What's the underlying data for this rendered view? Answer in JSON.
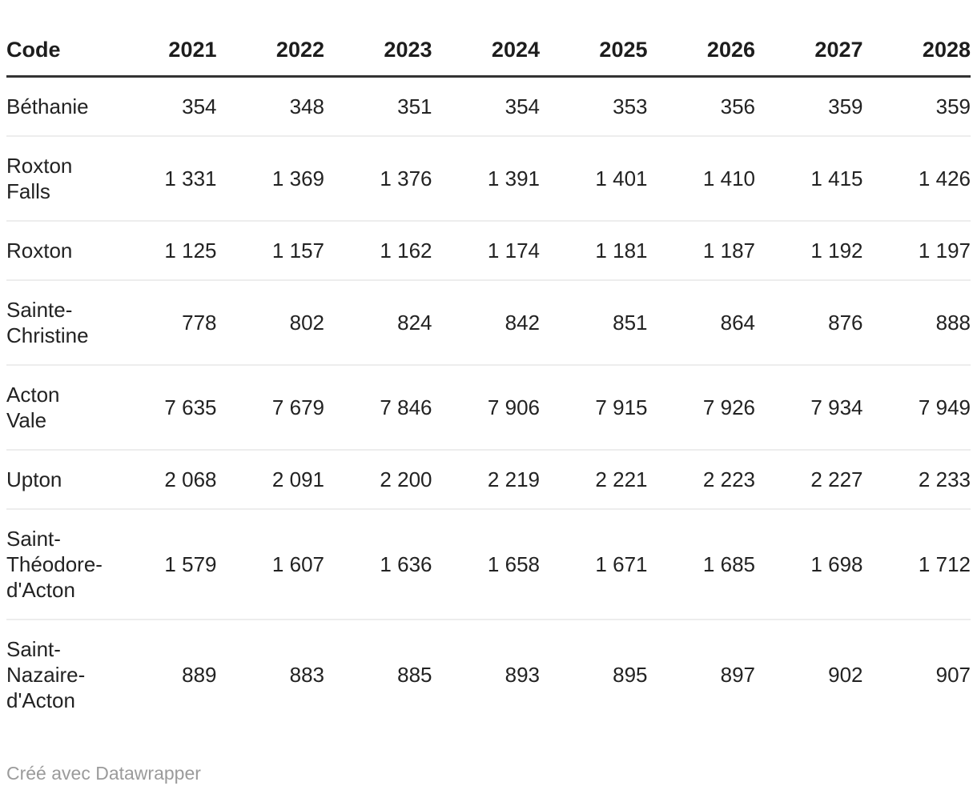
{
  "chart_data": {
    "type": "table",
    "title": "",
    "columns": [
      "Code",
      "2021",
      "2022",
      "2023",
      "2024",
      "2025",
      "2026",
      "2027",
      "2028"
    ],
    "rows": [
      {
        "label": "Béthanie",
        "values": [
          354,
          348,
          351,
          354,
          353,
          356,
          359,
          359
        ]
      },
      {
        "label": "Roxton Falls",
        "values": [
          1331,
          1369,
          1376,
          1391,
          1401,
          1410,
          1415,
          1426
        ]
      },
      {
        "label": "Roxton",
        "values": [
          1125,
          1157,
          1162,
          1174,
          1181,
          1187,
          1192,
          1197
        ]
      },
      {
        "label": "Sainte-Christine",
        "values": [
          778,
          802,
          824,
          842,
          851,
          864,
          876,
          888
        ]
      },
      {
        "label": "Acton Vale",
        "values": [
          7635,
          7679,
          7846,
          7906,
          7915,
          7926,
          7934,
          7949
        ]
      },
      {
        "label": "Upton",
        "values": [
          2068,
          2091,
          2200,
          2219,
          2221,
          2223,
          2227,
          2233
        ]
      },
      {
        "label": "Saint-Théodore-d'Acton",
        "values": [
          1579,
          1607,
          1636,
          1658,
          1671,
          1685,
          1698,
          1712
        ]
      },
      {
        "label": "Saint-Nazaire-d'Acton",
        "values": [
          889,
          883,
          885,
          893,
          895,
          897,
          902,
          907
        ]
      }
    ],
    "layout_hints": {
      "number_format": "space thousands separator",
      "first_column_align": "left",
      "year_columns_align": "right",
      "grid": "horizontal rules only",
      "right_edge_clipped": true
    }
  },
  "table": {
    "header": [
      "Code",
      "2021",
      "2022",
      "2023",
      "2024",
      "2025",
      "2026",
      "2027",
      "2028"
    ],
    "rows": [
      {
        "label_display": "Béthanie",
        "cells": [
          "354",
          "348",
          "351",
          "354",
          "353",
          "356",
          "359",
          "359"
        ]
      },
      {
        "label_display": "Roxton\nFalls",
        "cells": [
          "1 331",
          "1 369",
          "1 376",
          "1 391",
          "1 401",
          "1 410",
          "1 415",
          "1 426"
        ]
      },
      {
        "label_display": "Roxton",
        "cells": [
          "1 125",
          "1 157",
          "1 162",
          "1 174",
          "1 181",
          "1 187",
          "1 192",
          "1 197"
        ]
      },
      {
        "label_display": "Sainte-\nChristine",
        "cells": [
          "778",
          "802",
          "824",
          "842",
          "851",
          "864",
          "876",
          "888"
        ]
      },
      {
        "label_display": "Acton\nVale",
        "cells": [
          "7 635",
          "7 679",
          "7 846",
          "7 906",
          "7 915",
          "7 926",
          "7 934",
          "7 949"
        ]
      },
      {
        "label_display": "Upton",
        "cells": [
          "2 068",
          "2 091",
          "2 200",
          "2 219",
          "2 221",
          "2 223",
          "2 227",
          "2 233"
        ]
      },
      {
        "label_display": "Saint-\nThéodore-\nd'Acton",
        "cells": [
          "1 579",
          "1 607",
          "1 636",
          "1 658",
          "1 671",
          "1 685",
          "1 698",
          "1 712"
        ]
      },
      {
        "label_display": "Saint-\nNazaire-\nd'Acton",
        "cells": [
          "889",
          "883",
          "885",
          "893",
          "895",
          "897",
          "902",
          "907"
        ]
      }
    ]
  },
  "footer": {
    "credit": "Créé avec Datawrapper"
  },
  "colors": {
    "text": "#222222",
    "header_rule": "#333333",
    "row_rule": "#ededed",
    "credit_text": "#9b9b9b",
    "background": "#ffffff"
  }
}
